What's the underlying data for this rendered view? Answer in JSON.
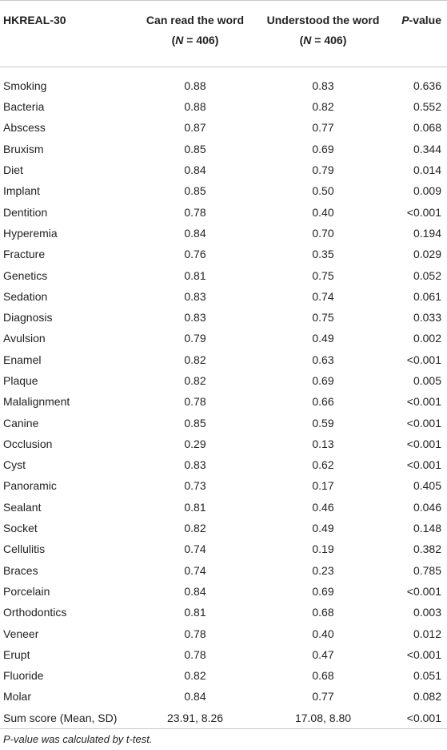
{
  "table": {
    "header": {
      "col0": "HKREAL-30",
      "col1": {
        "line1": "Can read the word",
        "line2": [
          "(",
          "N",
          " = 406)"
        ]
      },
      "col2": {
        "line1": "Understood the word",
        "line2": [
          "(",
          "N",
          " = 406)"
        ]
      },
      "col3": [
        "P",
        "-value"
      ]
    },
    "rows": [
      [
        "Smoking",
        "0.88",
        "0.83",
        "0.636"
      ],
      [
        "Bacteria",
        "0.88",
        "0.82",
        "0.552"
      ],
      [
        "Abscess",
        "0.87",
        "0.77",
        "0.068"
      ],
      [
        "Bruxism",
        "0.85",
        "0.69",
        "0.344"
      ],
      [
        "Diet",
        "0.84",
        "0.79",
        "0.014"
      ],
      [
        "Implant",
        "0.85",
        "0.50",
        "0.009"
      ],
      [
        "Dentition",
        "0.78",
        "0.40",
        "<0.001"
      ],
      [
        "Hyperemia",
        "0.84",
        "0.70",
        "0.194"
      ],
      [
        "Fracture",
        "0.76",
        "0.35",
        "0.029"
      ],
      [
        "Genetics",
        "0.81",
        "0.75",
        "0.052"
      ],
      [
        "Sedation",
        "0.83",
        "0.74",
        "0.061"
      ],
      [
        "Diagnosis",
        "0.83",
        "0.75",
        "0.033"
      ],
      [
        "Avulsion",
        "0.79",
        "0.49",
        "0.002"
      ],
      [
        "Enamel",
        "0.82",
        "0.63",
        "<0.001"
      ],
      [
        "Plaque",
        "0.82",
        "0.69",
        "0.005"
      ],
      [
        "Malalignment",
        "0.78",
        "0.66",
        "<0.001"
      ],
      [
        "Canine",
        "0.85",
        "0.59",
        "<0.001"
      ],
      [
        "Occlusion",
        "0.29",
        "0.13",
        "<0.001"
      ],
      [
        "Cyst",
        "0.83",
        "0.62",
        "<0.001"
      ],
      [
        "Panoramic",
        "0.73",
        "0.17",
        "0.405"
      ],
      [
        "Sealant",
        "0.81",
        "0.46",
        "0.046"
      ],
      [
        "Socket",
        "0.82",
        "0.49",
        "0.148"
      ],
      [
        "Cellulitis",
        "0.74",
        "0.19",
        "0.382"
      ],
      [
        "Braces",
        "0.74",
        "0.23",
        "0.785"
      ],
      [
        "Porcelain",
        "0.84",
        "0.69",
        "<0.001"
      ],
      [
        "Orthodontics",
        "0.81",
        "0.68",
        "0.003"
      ],
      [
        "Veneer",
        "0.78",
        "0.40",
        "0.012"
      ],
      [
        "Erupt",
        "0.78",
        "0.47",
        "<0.001"
      ],
      [
        "Fluoride",
        "0.82",
        "0.68",
        "0.051"
      ],
      [
        "Molar",
        "0.84",
        "0.77",
        "0.082"
      ],
      [
        "Sum score (Mean, SD)",
        "23.91, 8.26",
        "17.08, 8.80",
        "<0.001"
      ]
    ],
    "note": "P-value was calculated by t-test."
  }
}
